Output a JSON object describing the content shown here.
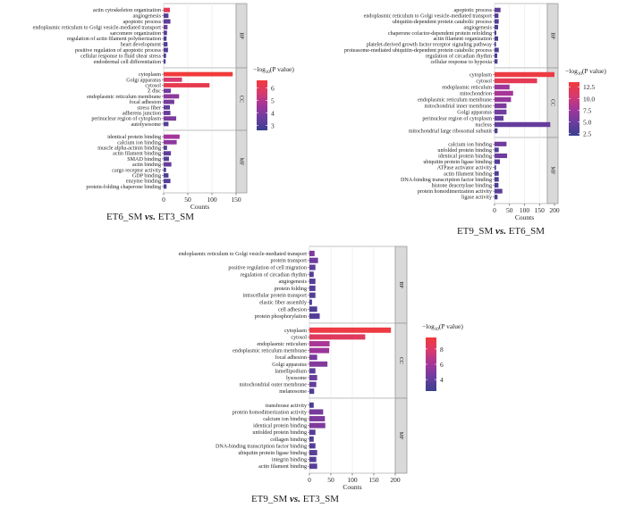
{
  "chart_data": [
    {
      "type": "bar",
      "orientation": "horizontal",
      "title": "ET6_SM vs. ET3_SM",
      "title_parts": [
        "ET6_SM ",
        "vs.",
        " ET3_SM"
      ],
      "xlabel": "Counts",
      "xlim": [
        0,
        150
      ],
      "xticks": [
        "0",
        "50",
        "100",
        "150"
      ],
      "legend": {
        "title_prefix": "−log",
        "title_sub": "10",
        "title_suffix": "(P value)",
        "ticks": [
          "6",
          "5",
          "4",
          "3"
        ],
        "range": [
          2.6,
          6.6
        ],
        "placement": "right"
      },
      "facets": [
        {
          "name": "BP",
          "categories": [
            "actin cytoskeleton organization",
            "angiogenesis",
            "apoptotic process",
            "endoplasmic reticulum to Golgi vesicle-mediated transport",
            "sarcomere organization",
            "regulation of actin filament polymerization",
            "heart development",
            "positive regulation of apoptotic process",
            "cellular response to fluid shear stress",
            "endodermal cell differentiation"
          ],
          "values": [
            13,
            10,
            14,
            8,
            7,
            6,
            8,
            9,
            5,
            4
          ],
          "neglog10p": [
            6.0,
            3.2,
            3.4,
            3.6,
            3.3,
            3.0,
            3.1,
            3.2,
            3.0,
            2.9
          ]
        },
        {
          "name": "CC",
          "categories": [
            "cytoplasm",
            "Golgi apparatus",
            "cytosol",
            "Z disc",
            "endoplasmic reticulum membrane",
            "focal adhesion",
            "stress fiber",
            "adherens junction",
            "perinuclear region of cytoplasm",
            "autolysosome"
          ],
          "values": [
            143,
            38,
            95,
            15,
            32,
            22,
            13,
            14,
            26,
            10
          ],
          "neglog10p": [
            6.6,
            5.6,
            6.2,
            3.7,
            4.2,
            3.8,
            3.4,
            3.5,
            3.9,
            3.1
          ]
        },
        {
          "name": "MF",
          "categories": [
            "identical protein binding",
            "calcium ion binding",
            "muscle alpha-actinin binding",
            "actin filament binding",
            "SMAD binding",
            "actin binding",
            "cargo receptor activity",
            "GDP binding",
            "enzyme binding",
            "protein-folding chaperone binding"
          ],
          "values": [
            33,
            27,
            7,
            15,
            11,
            16,
            5,
            10,
            14,
            6
          ],
          "neglog10p": [
            4.6,
            4.2,
            3.1,
            3.4,
            3.2,
            3.5,
            2.9,
            3.0,
            3.2,
            2.9
          ]
        }
      ]
    },
    {
      "type": "bar",
      "orientation": "horizontal",
      "title": "ET9_SM vs. ET6_SM",
      "title_parts": [
        "ET9_SM ",
        "vs.",
        " ET6_SM"
      ],
      "xlabel": "Counts",
      "xlim": [
        0,
        200
      ],
      "xticks": [
        "0",
        "50",
        "100",
        "150",
        "200"
      ],
      "xtick_values": [
        0,
        50,
        100,
        150,
        200
      ],
      "legend": {
        "title_prefix": "−log",
        "title_sub": "10",
        "title_suffix": "(P value)",
        "ticks": [
          "12.5",
          "10.0",
          "7.5",
          "5.0",
          "2.5"
        ],
        "range": [
          2.0,
          13.5
        ],
        "placement": "right"
      },
      "facets": [
        {
          "name": "BP",
          "categories": [
            "apoptotic process",
            "endoplasmic reticulum to Golgi vesicle-mediated transport",
            "ubiquitin-dependent protein catabolic process",
            "angiogenesis",
            "chaperone cofactor-dependent protein refolding",
            "actin filament organization",
            "platelet-derived growth factor receptor signaling pathway",
            "proteasome-mediated ubiquitin-dependent protein catabolic process",
            "regulation of circadian rhythm",
            "cellular response to hypoxia"
          ],
          "values": [
            20,
            13,
            14,
            12,
            6,
            12,
            5,
            14,
            9,
            10
          ],
          "neglog10p": [
            4.0,
            3.6,
            3.4,
            3.3,
            2.9,
            3.0,
            2.8,
            3.1,
            2.9,
            3.0
          ]
        },
        {
          "name": "CC",
          "categories": [
            "cytoplasm",
            "cytosol",
            "endoplasmic reticulum",
            "mitochondrion",
            "endoplasmic reticulum membrane",
            "mitochondrial inner membrane",
            "Golgi apparatus",
            "perinuclear region of cytoplasm",
            "nucleus",
            "mitochondrial large ribosomal subunit"
          ],
          "values": [
            200,
            142,
            50,
            62,
            55,
            40,
            40,
            30,
            186,
            10
          ],
          "neglog10p": [
            13.0,
            12.0,
            7.5,
            8.0,
            7.0,
            5.8,
            5.2,
            4.6,
            4.5,
            3.0
          ]
        },
        {
          "name": "MF",
          "categories": [
            "calcium ion binding",
            "unfolded protein binding",
            "identical protein binding",
            "ubiquitin protein ligase binding",
            "ATPase activator activity",
            "actin filament binding",
            "DNA-binding transcription factor binding",
            "histone deacetylase binding",
            "protein homodimerization activity",
            "ligase activity"
          ],
          "values": [
            40,
            14,
            42,
            18,
            5,
            14,
            14,
            13,
            26,
            10
          ],
          "neglog10p": [
            5.2,
            3.4,
            5.0,
            3.6,
            2.8,
            3.2,
            3.2,
            3.0,
            4.0,
            2.9
          ]
        }
      ]
    },
    {
      "type": "bar",
      "orientation": "horizontal",
      "title": "ET9_SM vs. ET3_SM",
      "title_parts": [
        "ET9_SM ",
        "vs.",
        " ET3_SM"
      ],
      "xlabel": "Counts",
      "xlim": [
        0,
        200
      ],
      "xticks": [
        "0",
        "50",
        "100",
        "150",
        "200"
      ],
      "xtick_values": [
        0,
        50,
        100,
        150,
        200
      ],
      "legend": {
        "title_prefix": "−log",
        "title_sub": "10",
        "title_suffix": "(P value)",
        "ticks": [
          "8",
          "6",
          "4"
        ],
        "range": [
          2.5,
          9.5
        ],
        "placement": "right"
      },
      "facets": [
        {
          "name": "BP",
          "categories": [
            "endoplasmic reticulum to Golgi vesicle-mediated transport",
            "protein transport",
            "positive regulation of cell migration",
            "regulation of circadian rhythm",
            "angiogenesis",
            "protein folding",
            "intracellular protein transport",
            "elastic fiber assembly",
            "cell adhesion",
            "protein phosphorylation"
          ],
          "values": [
            12,
            20,
            14,
            10,
            14,
            14,
            14,
            6,
            18,
            24
          ],
          "neglog10p": [
            4.8,
            4.4,
            3.9,
            3.6,
            3.5,
            3.5,
            3.4,
            3.2,
            3.3,
            3.4
          ]
        },
        {
          "name": "CC",
          "categories": [
            "cytoplasm",
            "cytosol",
            "endoplasmic reticulum",
            "endoplasmic reticulum membrane",
            "focal adhesion",
            "Golgi apparatus",
            "lamellipodium",
            "lysosome",
            "mitochondrial outer membrane",
            "melanosome"
          ],
          "values": [
            190,
            130,
            47,
            46,
            18,
            42,
            14,
            18,
            16,
            11
          ],
          "neglog10p": [
            9.2,
            8.3,
            6.2,
            5.8,
            4.6,
            5.0,
            3.8,
            4.2,
            4.0,
            3.3
          ]
        },
        {
          "name": "MF",
          "categories": [
            "transferase activity",
            "protein homodimerization activity",
            "calcium ion binding",
            "identical protein binding",
            "unfolded protein binding",
            "collagen binding",
            "DNA-binding transcription factor binding",
            "ubiquitin protein ligase binding",
            "integrin binding",
            "actin filament binding"
          ],
          "values": [
            10,
            32,
            36,
            37,
            14,
            10,
            14,
            18,
            16,
            18
          ],
          "neglog10p": [
            3.1,
            4.6,
            4.8,
            4.9,
            3.5,
            3.2,
            3.4,
            3.6,
            3.5,
            3.6
          ]
        }
      ]
    }
  ]
}
